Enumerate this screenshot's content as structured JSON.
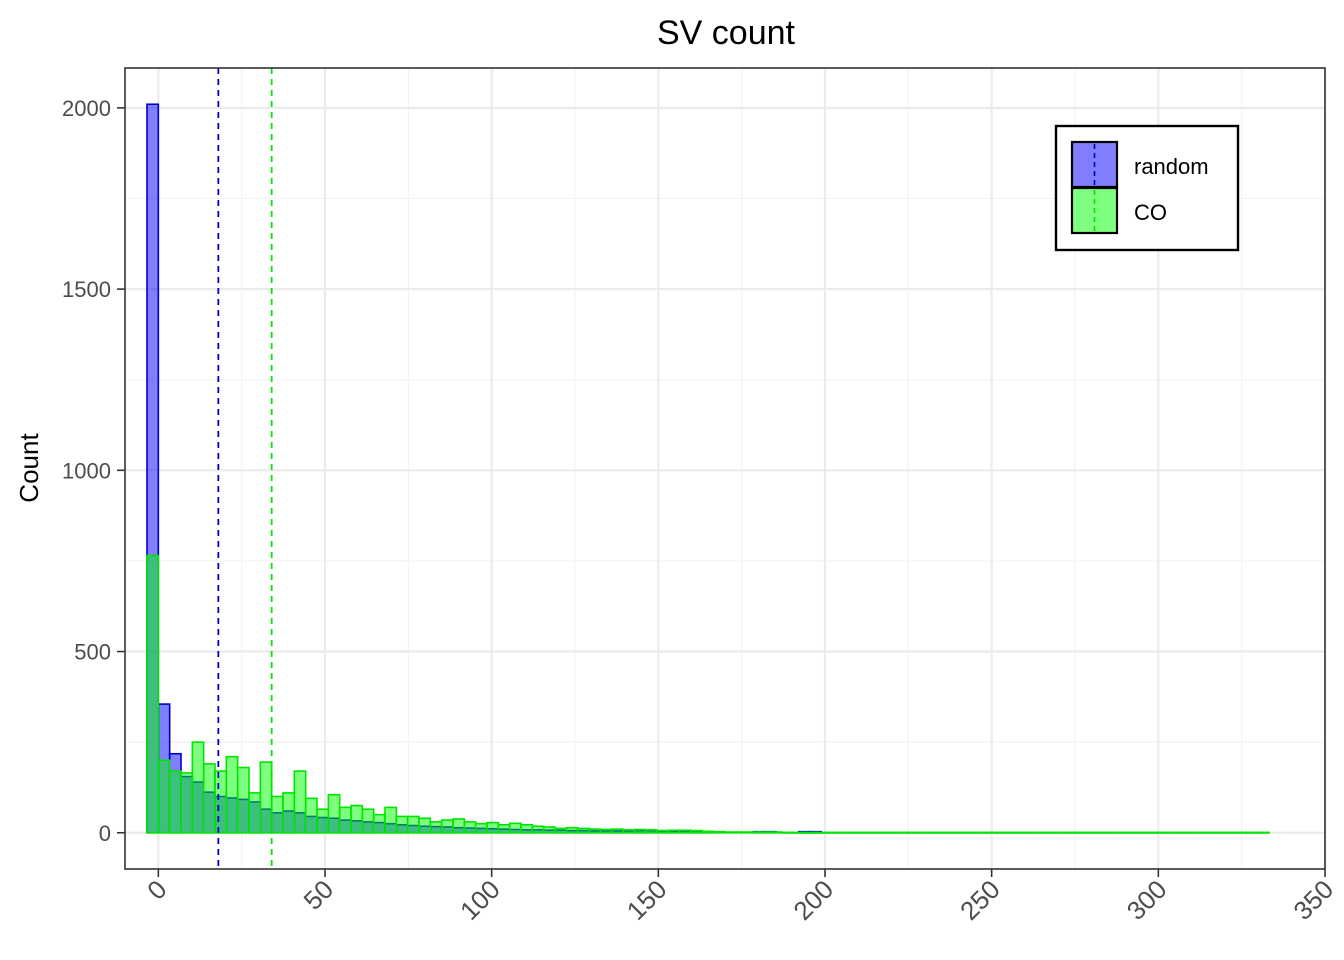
{
  "chart_data": {
    "type": "bar",
    "title": "SV count",
    "xlabel": "",
    "ylabel": "Count",
    "xlim": [
      -10,
      350
    ],
    "ylim": [
      -100,
      2110
    ],
    "x_ticks": [
      0,
      50,
      100,
      150,
      200,
      250,
      300,
      350
    ],
    "y_ticks": [
      0,
      500,
      1000,
      1500,
      2000
    ],
    "x_tick_rotation": -45,
    "grid": true,
    "legend_position": "top-right",
    "bin_width": 3.4,
    "series": [
      {
        "name": "random",
        "fill": "#0000ff",
        "stroke": "#0000cc",
        "mean": 18,
        "bins": [
          [
            -1.7,
            2010
          ],
          [
            1.7,
            355
          ],
          [
            5.1,
            218
          ],
          [
            8.5,
            155
          ],
          [
            11.9,
            140
          ],
          [
            15.3,
            112
          ],
          [
            18.7,
            100
          ],
          [
            22.1,
            96
          ],
          [
            25.5,
            92
          ],
          [
            28.9,
            85
          ],
          [
            32.3,
            65
          ],
          [
            35.7,
            55
          ],
          [
            39.1,
            60
          ],
          [
            42.5,
            55
          ],
          [
            45.9,
            45
          ],
          [
            49.3,
            42
          ],
          [
            52.7,
            40
          ],
          [
            56.1,
            35
          ],
          [
            59.5,
            33
          ],
          [
            62.9,
            30
          ],
          [
            66.3,
            28
          ],
          [
            69.7,
            25
          ],
          [
            73.1,
            22
          ],
          [
            76.5,
            20
          ],
          [
            79.9,
            18
          ],
          [
            83.3,
            17
          ],
          [
            86.7,
            16
          ],
          [
            90.1,
            14
          ],
          [
            93.5,
            13
          ],
          [
            96.9,
            12
          ],
          [
            100.3,
            11
          ],
          [
            103.7,
            10
          ],
          [
            107.1,
            9
          ],
          [
            110.5,
            8
          ],
          [
            113.9,
            8
          ],
          [
            117.3,
            7
          ],
          [
            120.7,
            7
          ],
          [
            124.1,
            6
          ],
          [
            127.5,
            6
          ],
          [
            130.9,
            5
          ],
          [
            134.3,
            5
          ],
          [
            137.7,
            5
          ],
          [
            141.1,
            5
          ],
          [
            144.5,
            6
          ],
          [
            147.9,
            6
          ],
          [
            151.3,
            4
          ],
          [
            154.7,
            3
          ],
          [
            158.1,
            3
          ],
          [
            161.5,
            2
          ],
          [
            164.9,
            2
          ],
          [
            180.2,
            3
          ],
          [
            183.6,
            3
          ],
          [
            193.8,
            3
          ],
          [
            197.2,
            3
          ]
        ]
      },
      {
        "name": "CO",
        "fill": "#00ff00",
        "stroke": "#00e600",
        "mean": 34,
        "bins": [
          [
            -1.7,
            765
          ],
          [
            1.7,
            200
          ],
          [
            5.1,
            170
          ],
          [
            8.5,
            165
          ],
          [
            11.9,
            250
          ],
          [
            15.3,
            190
          ],
          [
            18.7,
            170
          ],
          [
            22.1,
            210
          ],
          [
            25.5,
            180
          ],
          [
            28.9,
            110
          ],
          [
            32.3,
            195
          ],
          [
            35.7,
            100
          ],
          [
            39.1,
            110
          ],
          [
            42.5,
            170
          ],
          [
            45.9,
            95
          ],
          [
            49.3,
            65
          ],
          [
            52.7,
            105
          ],
          [
            56.1,
            70
          ],
          [
            59.5,
            75
          ],
          [
            62.9,
            65
          ],
          [
            66.3,
            50
          ],
          [
            69.7,
            70
          ],
          [
            73.1,
            45
          ],
          [
            76.5,
            45
          ],
          [
            79.9,
            40
          ],
          [
            83.3,
            30
          ],
          [
            86.7,
            35
          ],
          [
            90.1,
            38
          ],
          [
            93.5,
            30
          ],
          [
            96.9,
            25
          ],
          [
            100.3,
            28
          ],
          [
            103.7,
            22
          ],
          [
            107.1,
            26
          ],
          [
            110.5,
            22
          ],
          [
            113.9,
            18
          ],
          [
            117.3,
            16
          ],
          [
            120.7,
            12
          ],
          [
            124.1,
            14
          ],
          [
            127.5,
            12
          ],
          [
            130.9,
            10
          ],
          [
            134.3,
            9
          ],
          [
            137.7,
            10
          ],
          [
            141.1,
            8
          ],
          [
            144.5,
            9
          ],
          [
            147.9,
            8
          ],
          [
            151.3,
            6
          ],
          [
            154.7,
            7
          ],
          [
            158.1,
            7
          ],
          [
            161.5,
            6
          ],
          [
            164.9,
            4
          ],
          [
            168.3,
            3
          ],
          [
            171.7,
            2
          ],
          [
            175.1,
            2
          ],
          [
            178.5,
            2
          ],
          [
            181.9,
            2
          ],
          [
            185.3,
            2
          ],
          [
            188.7,
            1
          ],
          [
            192.1,
            1
          ],
          [
            195.5,
            1
          ],
          [
            198.9,
            1
          ],
          [
            202.3,
            1
          ],
          [
            205.7,
            1
          ],
          [
            209.1,
            1
          ],
          [
            212.5,
            1
          ],
          [
            215.9,
            1
          ],
          [
            219.3,
            1
          ],
          [
            222.7,
            1
          ],
          [
            226.1,
            1
          ],
          [
            229.5,
            1
          ],
          [
            232.9,
            1
          ],
          [
            236.3,
            1
          ],
          [
            239.7,
            1
          ],
          [
            243.1,
            1
          ],
          [
            246.5,
            1
          ],
          [
            249.9,
            1
          ],
          [
            253.3,
            1
          ],
          [
            256.7,
            1
          ],
          [
            260.1,
            1
          ],
          [
            263.5,
            1
          ],
          [
            266.9,
            1
          ],
          [
            270.3,
            1
          ],
          [
            273.7,
            1
          ],
          [
            277.1,
            1
          ],
          [
            280.5,
            1
          ],
          [
            283.9,
            1
          ],
          [
            287.3,
            1
          ],
          [
            290.7,
            1
          ],
          [
            294.1,
            1
          ],
          [
            297.5,
            1
          ],
          [
            300.9,
            1
          ],
          [
            304.3,
            1
          ],
          [
            307.7,
            1
          ],
          [
            311.1,
            1
          ],
          [
            314.5,
            1
          ],
          [
            317.9,
            1
          ],
          [
            321.3,
            1
          ],
          [
            324.7,
            1
          ],
          [
            328.1,
            1
          ],
          [
            331.5,
            1
          ]
        ]
      }
    ]
  }
}
